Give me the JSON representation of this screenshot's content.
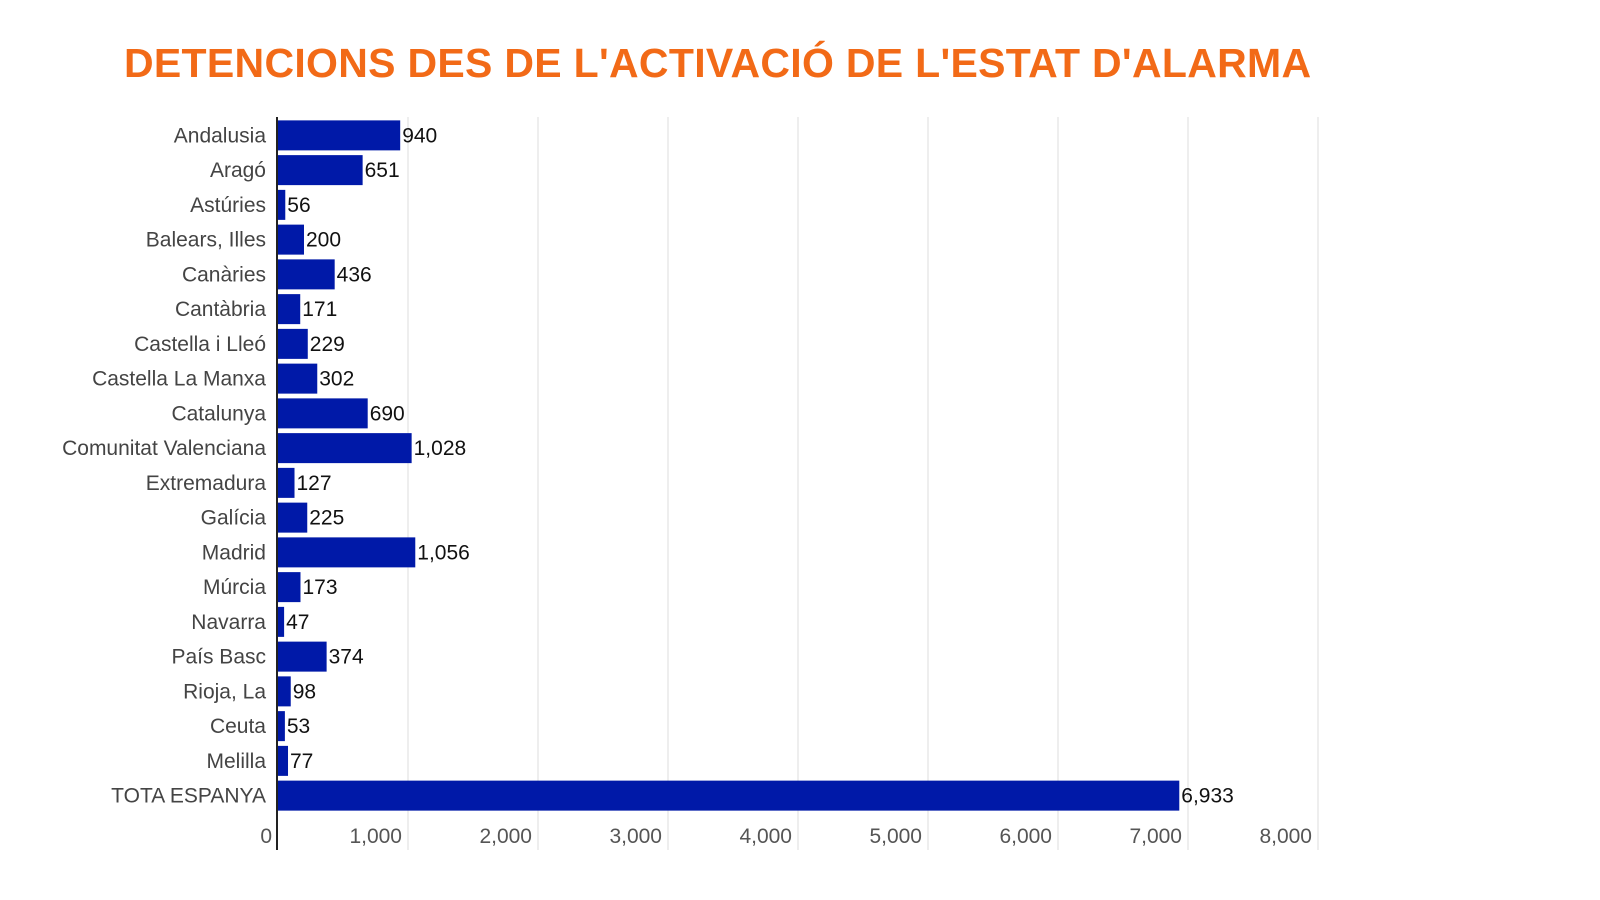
{
  "chart_data": {
    "type": "bar",
    "orientation": "horizontal",
    "title": "DETENCIONS DES DE L'ACTIVACIÓ DE L'ESTAT D'ALARMA",
    "xlabel": "",
    "ylabel": "",
    "categories": [
      "Andalusia",
      "Aragó",
      "Astúries",
      "Balears, Illes",
      "Canàries",
      "Cantàbria",
      "Castella i Lleó",
      "Castella La Manxa",
      "Catalunya",
      "Comunitat Valenciana",
      "Extremadura",
      "Galícia",
      "Madrid",
      "Múrcia",
      "Navarra",
      "País Basc",
      "Rioja, La",
      "Ceuta",
      "Melilla",
      "TOTA ESPANYA"
    ],
    "values": [
      940,
      651,
      56,
      200,
      436,
      171,
      229,
      302,
      690,
      1028,
      127,
      225,
      1056,
      173,
      47,
      374,
      98,
      53,
      77,
      6933
    ],
    "value_labels": [
      "940",
      "651",
      "56",
      "200",
      "436",
      "171",
      "229",
      "302",
      "690",
      "1,028",
      "127",
      "225",
      "1,056",
      "173",
      "47",
      "374",
      "98",
      "53",
      "77",
      "6,933"
    ],
    "xlim": [
      0,
      8000
    ],
    "xticks": [
      0,
      1000,
      2000,
      3000,
      4000,
      5000,
      6000,
      7000,
      8000
    ],
    "xtick_labels": [
      "0",
      "1,000",
      "2,000",
      "3,000",
      "4,000",
      "5,000",
      "6,000",
      "7,000",
      "8,000"
    ],
    "grid": true,
    "legend": "none",
    "colors": {
      "bar": "#0019a8",
      "title": "#f26a17",
      "grid": "#dddddd"
    }
  }
}
